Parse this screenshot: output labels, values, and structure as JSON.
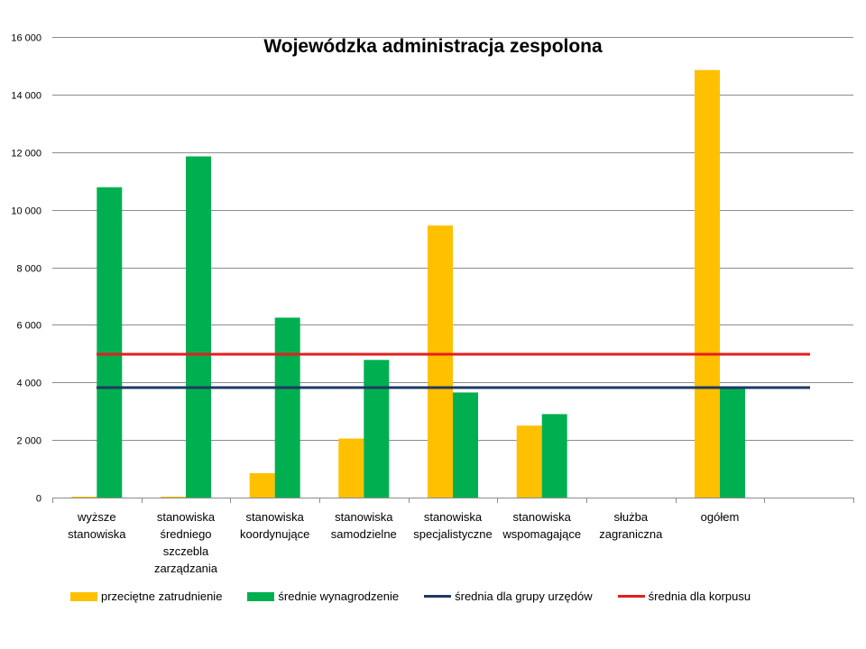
{
  "chart_data": {
    "type": "bar",
    "title": "Wojewódzka administracja zespolona",
    "categories": [
      [
        "wyższe",
        "stanowiska"
      ],
      [
        "stanowiska",
        "średniego",
        "szczebla",
        "zarządzania"
      ],
      [
        "stanowiska",
        "koordynujące"
      ],
      [
        "stanowiska",
        "samodzielne"
      ],
      [
        "stanowiska",
        "specjalistyczne"
      ],
      [
        "stanowiska",
        "wspomagające"
      ],
      [
        "służba",
        "zagraniczna"
      ],
      [
        "ogółem"
      ],
      [
        ""
      ]
    ],
    "series": [
      {
        "name": "przeciętne zatrudnienie",
        "color": "#FFC000",
        "values": [
          30,
          30,
          850,
          2050,
          9450,
          2500,
          0,
          14850,
          null
        ]
      },
      {
        "name": "średnie wynagrodzenie",
        "color": "#00B050",
        "values": [
          10780,
          11850,
          6250,
          4780,
          3650,
          2900,
          0,
          3820,
          null
        ]
      }
    ],
    "lines": [
      {
        "name": "średnia dla grupy urzędów",
        "color": "#1F3864",
        "value": 3820
      },
      {
        "name": "średnia dla korpusu",
        "color": "#E41E1E",
        "value": 4980
      }
    ],
    "y_ticks": [
      "0",
      "2 000",
      "4 000",
      "6 000",
      "8 000",
      "10 000",
      "12 000",
      "14 000",
      "16 000"
    ],
    "ylim": [
      0,
      16000
    ],
    "grid": true,
    "legend_position": "bottom"
  }
}
